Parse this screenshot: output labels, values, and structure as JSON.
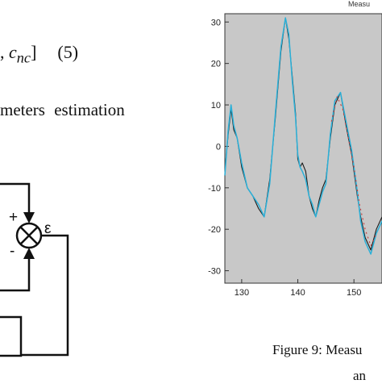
{
  "equation": {
    "prefix": ", ",
    "term": "c",
    "subscript": "nc",
    "suffix": "]",
    "number": "(5)"
  },
  "paragraph": {
    "text": "meters estimation"
  },
  "diagram": {
    "plus": "+",
    "minus": "-",
    "epsilon": "ε"
  },
  "plot": {
    "title": "Measu"
  },
  "caption": {
    "line1": "Figure 9: Measu",
    "line2": "an"
  },
  "chart_data": {
    "type": "line",
    "title": "Measu",
    "xlabel": "",
    "ylabel": "",
    "xlim": [
      127,
      155
    ],
    "ylim": [
      -33,
      32
    ],
    "xticks": [
      130,
      140,
      150
    ],
    "yticks": [
      30,
      20,
      10,
      0,
      -10,
      -20,
      -30
    ],
    "grid": false,
    "colors": {
      "plot_bg": "#c8c8c8",
      "series_1": "#1a1a1a",
      "series_2": "#2ab0d8",
      "series_3": "#c83c3c"
    },
    "series": [
      {
        "x": [
          127,
          127.6,
          128.1,
          128.6,
          129.2,
          130,
          131,
          132,
          133,
          134,
          135,
          136,
          137,
          137.8,
          138.4,
          139,
          139.6,
          140,
          140.4,
          140.8,
          141.4,
          142,
          142.6,
          143.2,
          143.8,
          144.4,
          145,
          145.8,
          146.6,
          147.6,
          148.6,
          149.6,
          150.6,
          151.2,
          152,
          153,
          154,
          155
        ],
        "y": [
          -6,
          3,
          9,
          4,
          2,
          -5,
          -10,
          -12,
          -15,
          -17,
          -8,
          7,
          23,
          31,
          26,
          17,
          8,
          -3,
          -5,
          -4,
          -6,
          -12,
          -15,
          -17,
          -13,
          -10,
          -8,
          2,
          10,
          13,
          5,
          -2,
          -12,
          -17,
          -22,
          -25,
          -20,
          -17
        ]
      },
      {
        "x": [
          127,
          127.6,
          128.1,
          128.6,
          129.2,
          130,
          131,
          132,
          133,
          134,
          135,
          136,
          137,
          137.8,
          138.4,
          139,
          139.6,
          140,
          140.4,
          140.8,
          141.4,
          142,
          142.6,
          143.2,
          143.8,
          144.4,
          145,
          145.8,
          146.6,
          147.6,
          148.6,
          149.6,
          150.6,
          151.2,
          152,
          153,
          154,
          155
        ],
        "y": [
          -7,
          4,
          10,
          5,
          2,
          -4,
          -10,
          -12,
          -14,
          -17,
          -9,
          8,
          24,
          31,
          27,
          16,
          7,
          -2,
          -5,
          -6,
          -8,
          -12,
          -14,
          -17,
          -14,
          -11,
          -9,
          3,
          11,
          13,
          6,
          -1,
          -11,
          -18,
          -23,
          -26,
          -21,
          -18
        ]
      },
      {
        "x": [
          146,
          147,
          148,
          149,
          150,
          151,
          152,
          153,
          154
        ],
        "y": [
          6,
          12,
          9,
          2,
          -5,
          -14,
          -20,
          -24,
          -21
        ]
      }
    ]
  }
}
